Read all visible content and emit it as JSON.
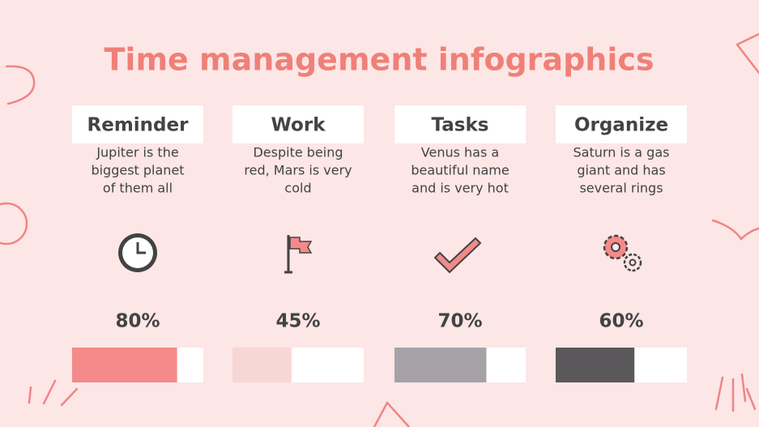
{
  "title": "Time management infographics",
  "items": [
    {
      "heading": "Reminder",
      "description": [
        "Jupiter is the",
        "biggest planet",
        "of them all"
      ],
      "value": 80,
      "value_label": "80%",
      "color": "#f48a89"
    },
    {
      "heading": "Work",
      "description": [
        "Despite being",
        "red, Mars is very",
        "cold"
      ],
      "value": 45,
      "value_label": "45%",
      "color": "#f9d6d6"
    },
    {
      "heading": "Tasks",
      "description": [
        "Venus has a",
        "beautiful name",
        "and is very hot"
      ],
      "value": 70,
      "value_label": "70%",
      "color": "#a6a2a7"
    },
    {
      "heading": "Organize",
      "description": [
        "Saturn is a gas",
        "giant and has",
        "several rings"
      ],
      "value": 60,
      "value_label": "60%",
      "color": "#5a585b"
    }
  ]
}
